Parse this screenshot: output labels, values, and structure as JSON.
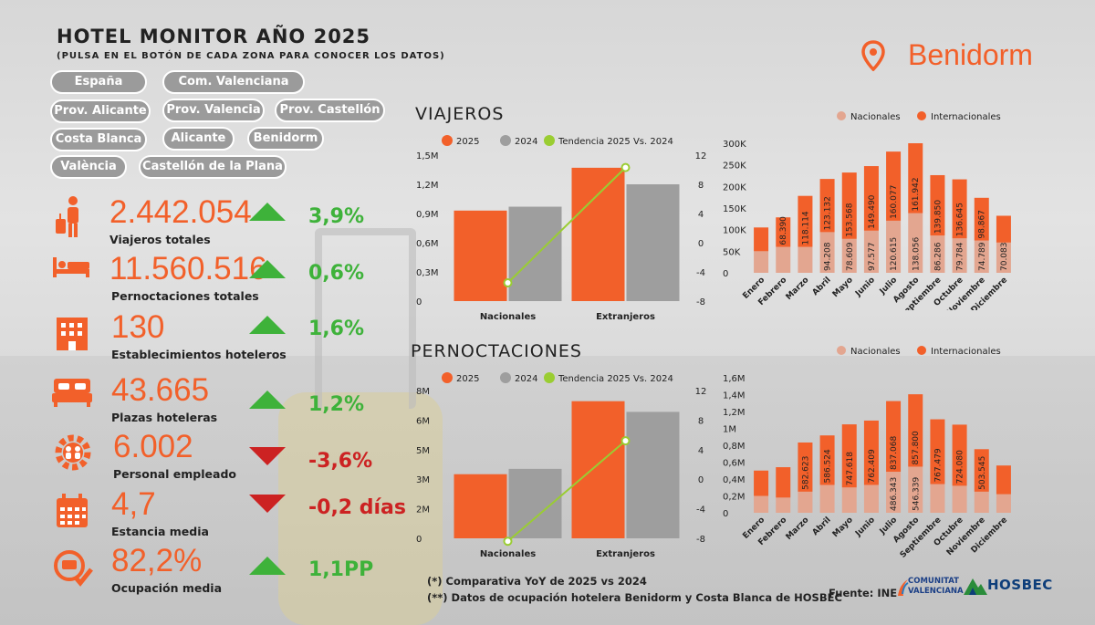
{
  "header": {
    "title": "HOTEL MONITOR AÑO 2025",
    "subtitle": "(PULSA EN EL BOTÓN DE CADA ZONA PARA CONOCER LOS DATOS)",
    "city": "Benidorm"
  },
  "zones": [
    "España",
    "Com. Valenciana",
    "Prov. Alicante",
    "Prov. Valencia",
    "Prov. Castellón",
    "Costa Blanca",
    "Alicante",
    "Benidorm",
    "València",
    "Castellón de la Plana"
  ],
  "kpis": [
    {
      "value": "2.442.054",
      "label": "Viajeros totales",
      "change": "3,9%",
      "trend": "up",
      "icon": "traveler-icon"
    },
    {
      "value": "11.560.516",
      "label": "Pernoctaciones totales",
      "change": "0,6%",
      "trend": "up",
      "icon": "bed-icon"
    },
    {
      "value": "130",
      "label": "Establecimientos hoteleros",
      "change": "1,6%",
      "trend": "up",
      "icon": "hotel-building-icon"
    },
    {
      "value": "43.665",
      "label": "Plazas hoteleras",
      "change": "1,2%",
      "trend": "up",
      "icon": "double-bed-icon"
    },
    {
      "value": "6.002",
      "label": "Personal empleado",
      "change": "-3,6%",
      "trend": "down",
      "icon": "staff-gear-icon"
    },
    {
      "value": "4,7",
      "label": "Estancia media",
      "change": "-0,2 días",
      "trend": "down",
      "icon": "calendar-icon"
    },
    {
      "value": "82,2%",
      "label": "Ocupación media",
      "change": "1,1PP",
      "trend": "up",
      "icon": "occupancy-check-icon"
    }
  ],
  "sections": {
    "viajeros": "VIAJEROS",
    "pernoctaciones": "PERNOCTACIONES"
  },
  "footer": {
    "note1": "(*) Comparativa YoY de 2025 vs 2024",
    "note2": "(**) Datos de ocupación hotelera Benidorm y Costa Blanca de HOSBEC",
    "source": "Fuente: INE",
    "logo1": "COMUNITAT VALENCIANA",
    "logo2": "HOSBEC"
  },
  "colors": {
    "orange": "#f2602a",
    "gray": "#9e9e9e",
    "green": "#9acd32",
    "light": "#e3a690"
  },
  "chart_data": [
    {
      "id": "viajeros-bars",
      "type": "bar",
      "categories": [
        "Nacionales",
        "Extranjeros"
      ],
      "series": [
        {
          "name": "2025",
          "values": [
            0.93,
            1.37
          ]
        },
        {
          "name": "2024",
          "values": [
            0.97,
            1.2
          ]
        }
      ],
      "trend": {
        "name": "Tendencia 2025 Vs. 2024",
        "values": [
          -5.5,
          10.3
        ]
      },
      "yticks": [
        "0",
        "0,3M",
        "0,6M",
        "0,9M",
        "1,2M",
        "1,5M"
      ],
      "ylim": [
        0,
        1.5
      ],
      "y2ticks": [
        "-8",
        "-4",
        "0",
        "4",
        "8",
        "12"
      ],
      "y2lim": [
        -8,
        12
      ]
    },
    {
      "id": "viajeros-monthly",
      "type": "bar",
      "stacked": true,
      "categories": [
        "Enero",
        "Febrero",
        "Marzo",
        "Abril",
        "Mayo",
        "Junio",
        "Julio",
        "Agosto",
        "Septiembre",
        "Octubre",
        "Noviembre",
        "Diciembre"
      ],
      "series": [
        {
          "name": "Nacionales",
          "values": [
            50000,
            60000,
            60000,
            94208,
            78609,
            97577,
            120615,
            138056,
            86286,
            79784,
            74789,
            70083
          ],
          "labels": [
            "",
            "",
            "",
            "94.208",
            "78.609",
            "97.577",
            "120.615",
            "138.056",
            "86.286",
            "79.784",
            "74.789",
            "70.083"
          ]
        },
        {
          "name": "Internacionales",
          "values": [
            55000,
            68390,
            118114,
            123132,
            153568,
            149490,
            160077,
            161942,
            139850,
            136645,
            98867,
            62000
          ],
          "labels": [
            "",
            "68.390",
            "118.114",
            "123.132",
            "153.568",
            "149.490",
            "160.077",
            "161.942",
            "139.850",
            "136.645",
            "98.867",
            ""
          ]
        }
      ],
      "yticks": [
        "0",
        "50K",
        "100K",
        "150K",
        "200K",
        "250K",
        "300K"
      ],
      "ylim": [
        0,
        300000
      ]
    },
    {
      "id": "pernoctaciones-bars",
      "type": "bar",
      "categories": [
        "Nacionales",
        "Extranjeros"
      ],
      "series": [
        {
          "name": "2025",
          "values": [
            3.6,
            7.7
          ]
        },
        {
          "name": "2024",
          "values": [
            3.9,
            7.1
          ]
        }
      ],
      "trend": {
        "name": "Tendencia 2025 Vs. 2024",
        "values": [
          -8.4,
          5.2
        ]
      },
      "yticks": [
        "0",
        "2M",
        "3M",
        "5M",
        "6M",
        "8M"
      ],
      "ylim": [
        0,
        8.3
      ],
      "y2ticks": [
        "-8",
        "-4",
        "0",
        "4",
        "8",
        "12"
      ],
      "y2lim": [
        -8,
        12
      ]
    },
    {
      "id": "pernoctaciones-monthly",
      "type": "bar",
      "stacked": true,
      "categories": [
        "Enero",
        "Febrero",
        "Marzo",
        "Abril",
        "Mayo",
        "Junio",
        "Julio",
        "Agosto",
        "Septiembre",
        "Octubre",
        "Noviembre",
        "Diciembre"
      ],
      "series": [
        {
          "name": "Nacionales",
          "values": [
            200000,
            180000,
            250000,
            330000,
            300000,
            330000,
            486343,
            546339,
            340000,
            320000,
            250000,
            220000
          ],
          "labels": [
            "",
            "",
            "",
            "",
            "",
            "",
            "486.343",
            "546.339",
            "",
            "",
            "",
            ""
          ]
        },
        {
          "name": "Internacionales",
          "values": [
            300000,
            360000,
            582623,
            586524,
            747618,
            762409,
            837068,
            857800,
            767479,
            724080,
            503545,
            340000
          ],
          "labels": [
            "",
            "",
            "582.623",
            "586.524",
            "747.618",
            "762.409",
            "837.068",
            "857.800",
            "767.479",
            "724.080",
            "503.545",
            ""
          ]
        }
      ],
      "yticks": [
        "0",
        "0,2M",
        "0,4M",
        "0,6M",
        "0,8M",
        "1M",
        "1,2M",
        "1,4M",
        "1,6M"
      ],
      "ylim": [
        0,
        1600000
      ]
    }
  ]
}
